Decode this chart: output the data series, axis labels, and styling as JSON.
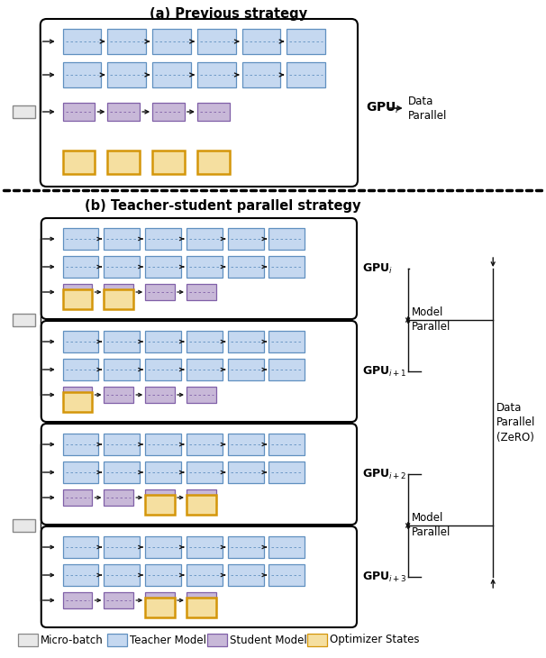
{
  "title_a": "(a) Previous strategy",
  "title_b": "(b) Teacher-student parallel strategy",
  "colors": {
    "teacher_fill": "#c5d8f0",
    "teacher_edge": "#6090c0",
    "student_fill": "#c8b8d8",
    "student_edge": "#8060a8",
    "optimizer_fill": "#f5dfa0",
    "optimizer_edge": "#d4960a",
    "microbatch_fill": "#e8e8e8",
    "microbatch_edge": "#888888",
    "arrow": "#111111"
  },
  "legend_labels": [
    "Micro-batch",
    "Teacher Model",
    "Student Model",
    "Optimizer States"
  ],
  "legend_fill": [
    "#e8e8e8",
    "#c5d8f0",
    "#c8b8d8",
    "#f5dfa0"
  ],
  "legend_edge": [
    "#888888",
    "#6090c0",
    "#8060a8",
    "#d4960a"
  ]
}
